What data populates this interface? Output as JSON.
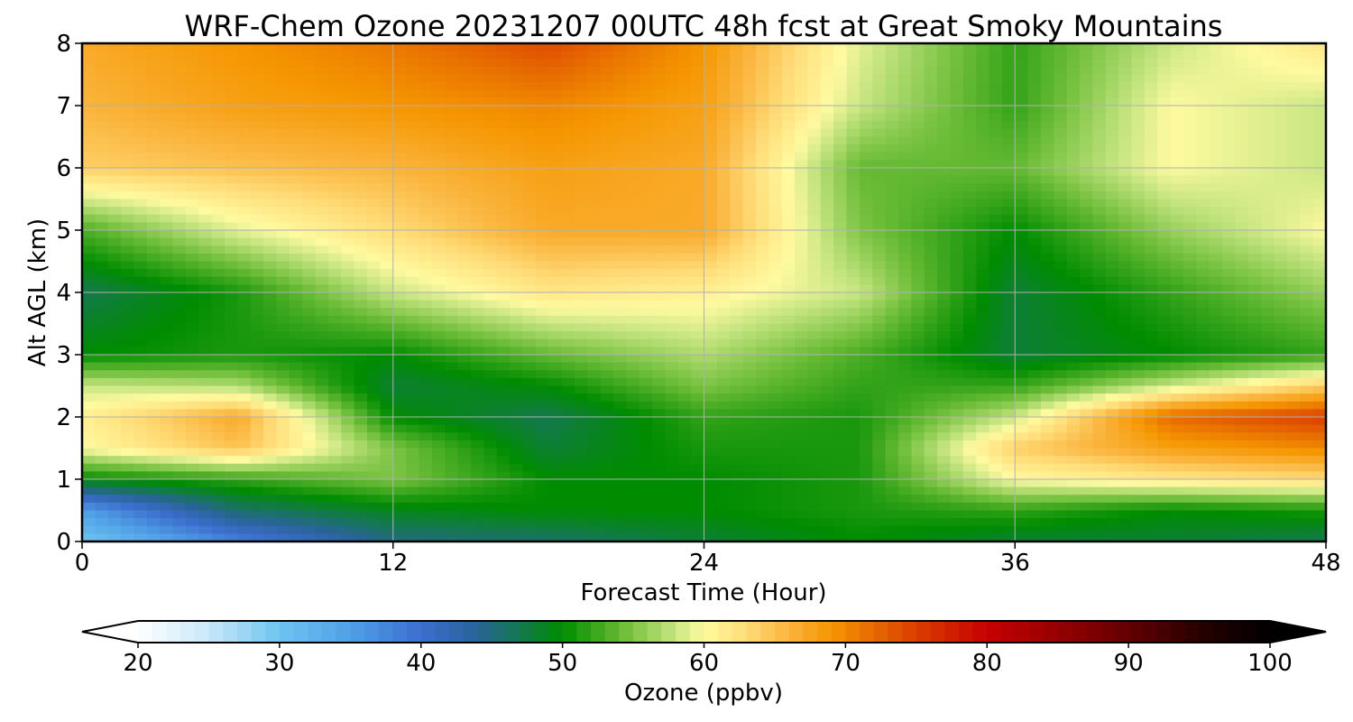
{
  "chart_data": {
    "type": "heatmap",
    "title": "WRF-Chem Ozone  20231207 00UTC 48h fcst at Great Smoky Mountains",
    "xlabel": "Forecast Time (Hour)",
    "ylabel": "Alt AGL (km)",
    "xlim": [
      0,
      48
    ],
    "ylim": [
      0,
      8
    ],
    "xticks": [
      "0",
      "12",
      "24",
      "36",
      "48"
    ],
    "yticks": [
      "0",
      "1",
      "2",
      "3",
      "4",
      "5",
      "6",
      "7",
      "8"
    ],
    "grid": true,
    "x_hours": [
      0,
      6,
      12,
      18,
      24,
      30,
      36,
      42,
      48
    ],
    "y_km": [
      0,
      0.5,
      1,
      1.5,
      2,
      2.5,
      3,
      4,
      5,
      6,
      7,
      8
    ],
    "z_ppbv": [
      [
        30,
        38,
        45,
        46,
        48,
        50,
        48,
        48,
        47
      ],
      [
        35,
        46,
        49,
        50,
        50,
        51,
        52,
        50,
        51
      ],
      [
        50,
        52,
        55,
        50,
        50,
        51,
        60,
        62,
        63
      ],
      [
        60,
        65,
        55,
        48,
        51,
        51,
        64,
        68,
        70
      ],
      [
        61,
        67,
        50,
        47,
        52,
        51,
        58,
        72,
        75
      ],
      [
        58,
        57,
        48,
        50,
        55,
        52,
        52,
        58,
        64
      ],
      [
        50,
        51,
        50,
        54,
        57,
        53,
        48,
        50,
        52
      ],
      [
        47,
        51,
        58,
        62,
        61,
        58,
        48,
        52,
        56
      ],
      [
        53,
        59,
        63,
        67,
        67,
        55,
        50,
        56,
        60
      ],
      [
        64,
        65,
        66,
        68,
        67,
        54,
        54,
        60,
        58
      ],
      [
        66,
        68,
        69,
        70,
        68,
        58,
        52,
        60,
        58
      ],
      [
        67,
        69,
        71,
        74,
        69,
        59,
        52,
        58,
        62
      ]
    ],
    "colorbar": {
      "label": "Ozone  (ppbv)",
      "min": 20,
      "max": 100,
      "ticks": [
        "20",
        "30",
        "40",
        "50",
        "60",
        "70",
        "80",
        "90",
        "100"
      ],
      "extend": "both"
    }
  }
}
